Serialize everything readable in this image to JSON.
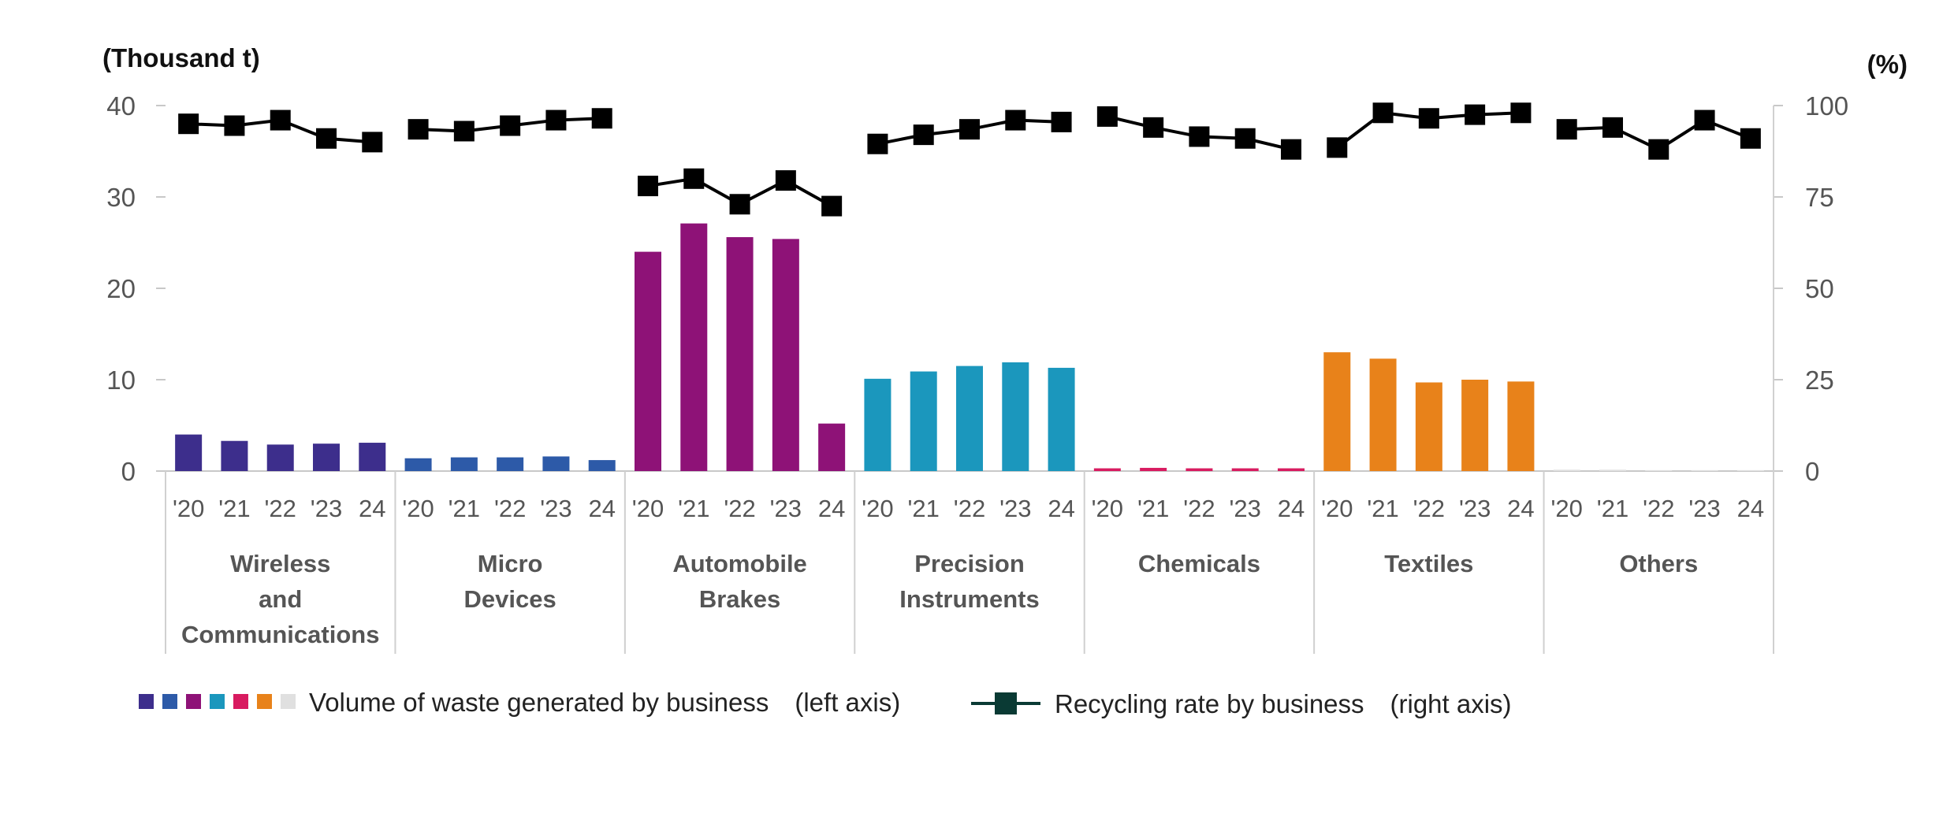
{
  "chart_data": {
    "type": "bar",
    "left_axis": {
      "unit_label": "(Thousand t)",
      "ylim": [
        0,
        40
      ],
      "ticks": [
        "0",
        "10",
        "20",
        "30",
        "40"
      ]
    },
    "right_axis": {
      "unit_label": "(%)",
      "ylim": [
        0,
        100
      ],
      "ticks": [
        "0",
        "25",
        "50",
        "75",
        "100"
      ]
    },
    "year_ticks": [
      "'20",
      "'21",
      "'22",
      "'23",
      "24"
    ],
    "groups": [
      {
        "name": "Wireless and Communications",
        "label_lines": [
          "Wireless",
          "and",
          "Communications"
        ],
        "color": "#3d2e8c",
        "waste": [
          4.0,
          3.3,
          2.9,
          3.0,
          3.1
        ],
        "recycling": [
          95,
          94.5,
          96,
          91,
          90
        ]
      },
      {
        "name": "Micro Devices",
        "label_lines": [
          "Micro",
          "Devices"
        ],
        "color": "#2d5aa8",
        "waste": [
          1.4,
          1.5,
          1.5,
          1.6,
          1.2
        ],
        "recycling": [
          93.5,
          93,
          94.5,
          96,
          96.5
        ]
      },
      {
        "name": "Automobile Brakes",
        "label_lines": [
          "Automobile",
          "Brakes"
        ],
        "color": "#8e1277",
        "waste": [
          24.0,
          27.1,
          25.6,
          25.4,
          5.2
        ],
        "recycling": [
          78,
          80,
          73,
          79.5,
          72.5
        ]
      },
      {
        "name": "Precision Instruments",
        "label_lines": [
          "Precision",
          "Instruments"
        ],
        "color": "#1b97bd",
        "waste": [
          10.1,
          10.9,
          11.5,
          11.9,
          11.3
        ],
        "recycling": [
          89.5,
          92,
          93.5,
          96,
          95.5
        ]
      },
      {
        "name": "Chemicals",
        "label_lines": [
          "Chemicals"
        ],
        "color": "#d81b60",
        "waste": [
          0.3,
          0.35,
          0.3,
          0.3,
          0.3
        ],
        "recycling": [
          97,
          94,
          91.5,
          91,
          88
        ]
      },
      {
        "name": "Textiles",
        "label_lines": [
          "Textiles"
        ],
        "color": "#e8821a",
        "waste": [
          13.0,
          12.3,
          9.7,
          10.0,
          9.8
        ],
        "recycling": [
          88.5,
          98,
          96.5,
          97.5,
          98
        ]
      },
      {
        "name": "Others",
        "label_lines": [
          "Others"
        ],
        "color": "#e0e0e0",
        "waste": [
          0.15,
          0.15,
          0.1,
          0.1,
          0.1
        ],
        "recycling": [
          93.5,
          94,
          88,
          96,
          91
        ]
      }
    ],
    "legend": {
      "bars_label": "Volume of waste generated by business　(left axis)",
      "line_label": "Recycling rate by business　(right axis)",
      "swatch_colors": [
        "#3d2e8c",
        "#2d5aa8",
        "#8e1277",
        "#1b97bd",
        "#d81b60",
        "#e8821a",
        "#e0e0e0"
      ],
      "line_color": "#000000",
      "legend_marker_color": "#0a3a34"
    },
    "grid": false
  }
}
